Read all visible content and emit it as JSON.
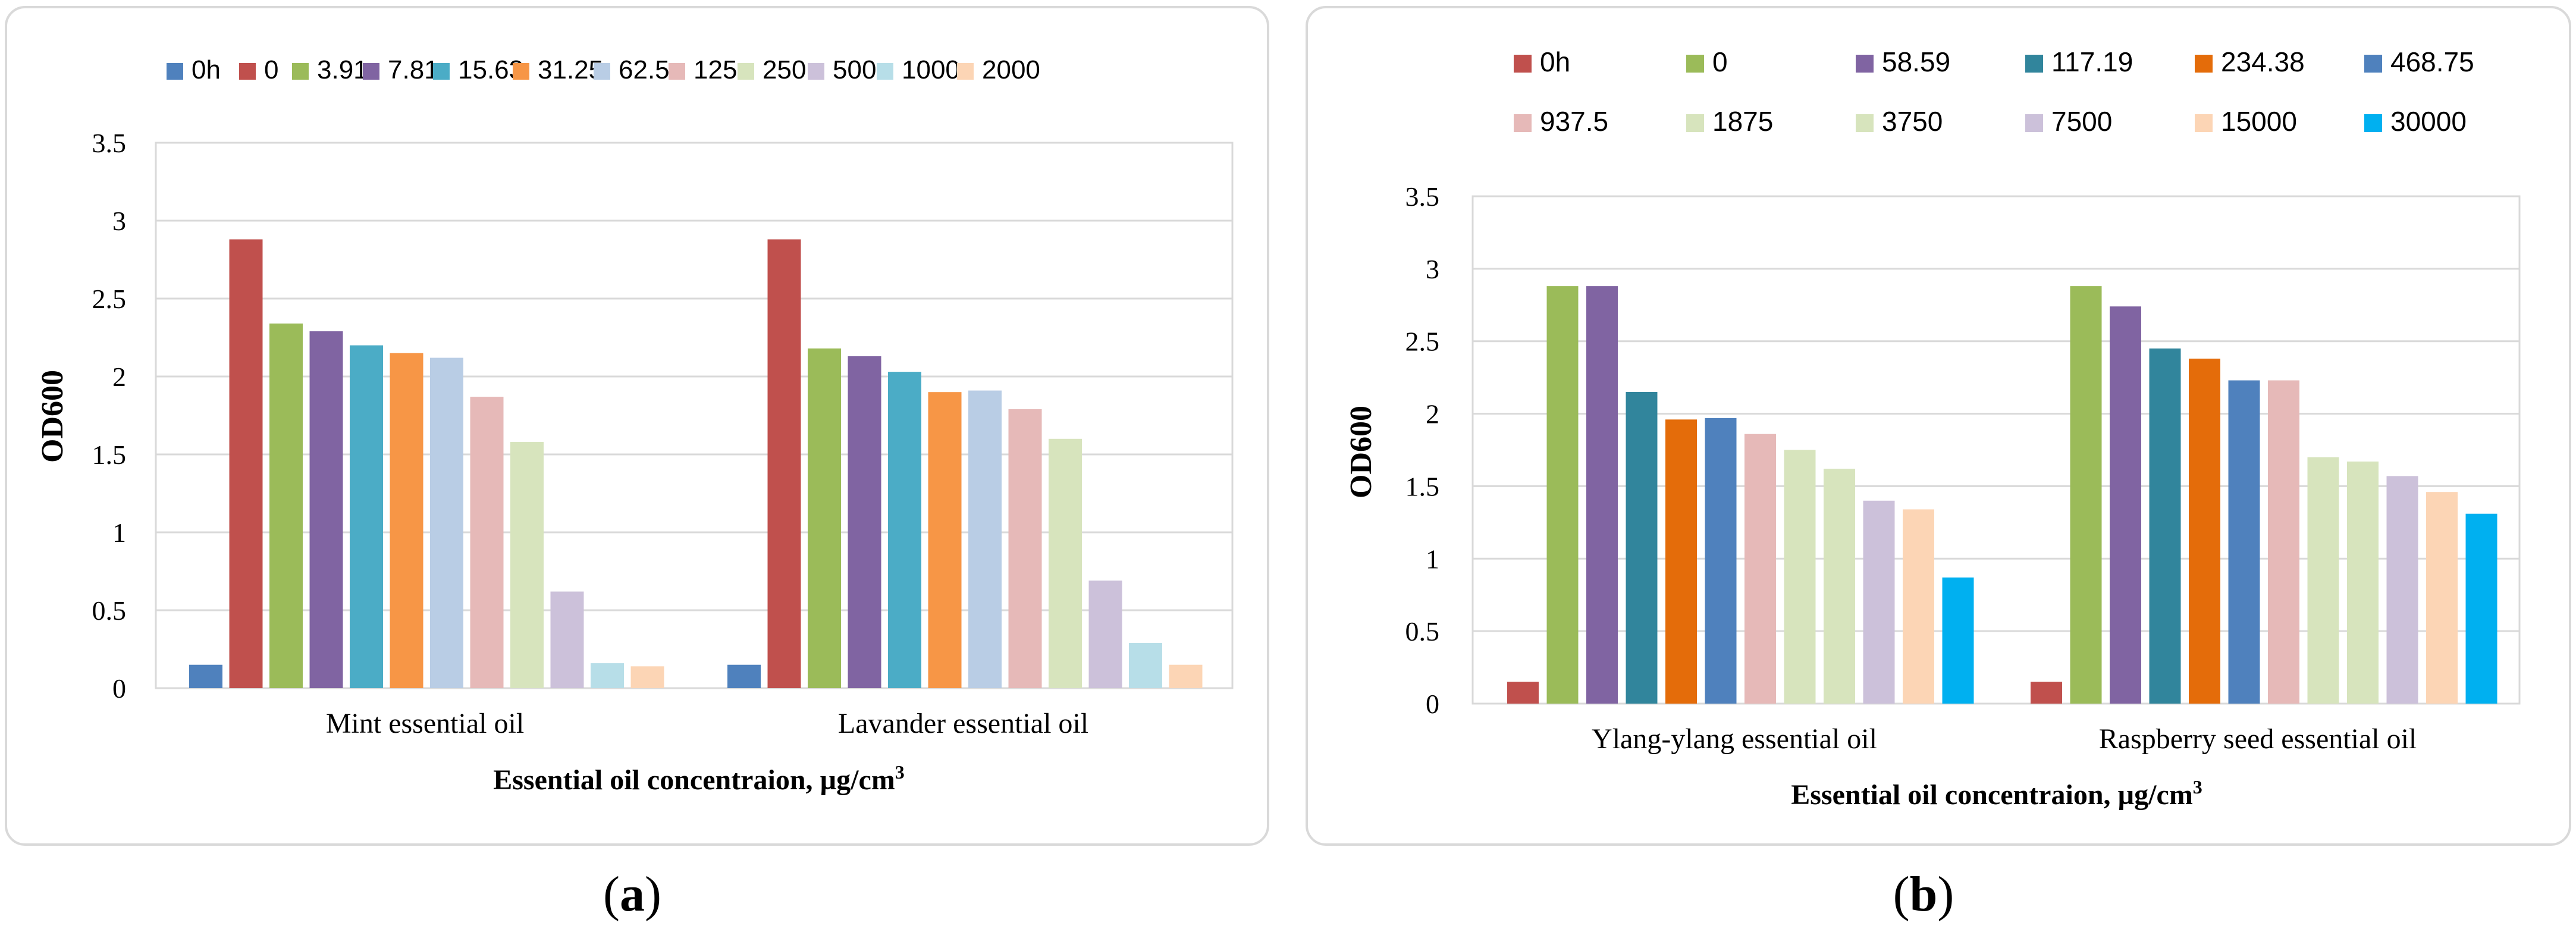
{
  "chart_data": [
    {
      "panel": "a",
      "type": "bar",
      "title": "",
      "xlabel": "Essential oil concentraion, µg/cm",
      "xlabel_sup": "3",
      "ylabel": "OD600",
      "ylim": [
        0,
        3.5
      ],
      "yticks": [
        "0",
        "0.5",
        "1",
        "1.5",
        "2",
        "2.5",
        "3",
        "3.5"
      ],
      "yticks_values": [
        0,
        0.5,
        1,
        1.5,
        2,
        2.5,
        3,
        3.5
      ],
      "grid": true,
      "legend_position": "top",
      "categories": [
        "Mint essential oil",
        "Lavander essential oil"
      ],
      "series": [
        {
          "name": "0h",
          "color": "#4f81bd",
          "values": [
            0.15,
            0.15
          ]
        },
        {
          "name": "0",
          "color": "#c0504d",
          "values": [
            2.88,
            2.88
          ]
        },
        {
          "name": "3.91",
          "color": "#9bbb59",
          "values": [
            2.34,
            2.18
          ]
        },
        {
          "name": "7.81",
          "color": "#8064a2",
          "values": [
            2.29,
            2.13
          ]
        },
        {
          "name": "15.63",
          "color": "#4bacc6",
          "values": [
            2.2,
            2.03
          ]
        },
        {
          "name": "31.25",
          "color": "#f79646",
          "values": [
            2.15,
            1.9
          ]
        },
        {
          "name": "62.5",
          "color": "#b9cde5",
          "values": [
            2.12,
            1.91
          ]
        },
        {
          "name": "125",
          "color": "#e6b9b8",
          "values": [
            1.87,
            1.79
          ]
        },
        {
          "name": "250",
          "color": "#d7e4bd",
          "values": [
            1.58,
            1.6
          ]
        },
        {
          "name": "500",
          "color": "#ccc1da",
          "values": [
            0.62,
            0.69
          ]
        },
        {
          "name": "1000",
          "color": "#b7dee8",
          "values": [
            0.16,
            0.29
          ]
        },
        {
          "name": "2000",
          "color": "#fcd5b5",
          "values": [
            0.14,
            0.15
          ]
        }
      ]
    },
    {
      "panel": "b",
      "type": "bar",
      "title": "",
      "xlabel": "Essential oil concentraion, µg/cm",
      "xlabel_sup": "3",
      "ylabel": "OD600",
      "ylim": [
        0,
        3.5
      ],
      "yticks": [
        "0",
        "0.5",
        "1",
        "1.5",
        "2",
        "2.5",
        "3",
        "3.5"
      ],
      "yticks_values": [
        0,
        0.5,
        1,
        1.5,
        2,
        2.5,
        3,
        3.5
      ],
      "grid": true,
      "legend_position": "top",
      "categories": [
        "Ylang-ylang essential oil",
        "Raspberry seed essential oil"
      ],
      "series": [
        {
          "name": "0h",
          "color": "#c0504d",
          "values": [
            0.15,
            0.15
          ]
        },
        {
          "name": "0",
          "color": "#9bbb59",
          "values": [
            2.88,
            2.88
          ]
        },
        {
          "name": "58.59",
          "color": "#8064a2",
          "values": [
            2.88,
            2.74
          ]
        },
        {
          "name": "117.19",
          "color": "#31859c",
          "values": [
            2.15,
            2.45
          ]
        },
        {
          "name": "234.38",
          "color": "#e46c0a",
          "values": [
            1.96,
            2.38
          ]
        },
        {
          "name": "468.75",
          "color": "#4f81bd",
          "values": [
            1.97,
            2.23
          ]
        },
        {
          "name": "937.5",
          "color": "#e6b9b8",
          "values": [
            1.86,
            2.23
          ]
        },
        {
          "name": "1875",
          "color": "#d7e4bd",
          "values": [
            1.75,
            1.7
          ]
        },
        {
          "name": "3750",
          "color": "#d7e4bd",
          "values": [
            1.62,
            1.67
          ]
        },
        {
          "name": "7500",
          "color": "#ccc1da",
          "values": [
            1.4,
            1.57
          ]
        },
        {
          "name": "15000",
          "color": "#fcd5b5",
          "values": [
            1.34,
            1.46
          ]
        },
        {
          "name": "30000",
          "color": "#00b0f0",
          "values": [
            0.87,
            1.31
          ]
        }
      ]
    }
  ],
  "captions": {
    "a": {
      "open": "(",
      "letter": "a",
      "close": ")"
    },
    "b": {
      "open": "(",
      "letter": "b",
      "close": ")"
    }
  }
}
